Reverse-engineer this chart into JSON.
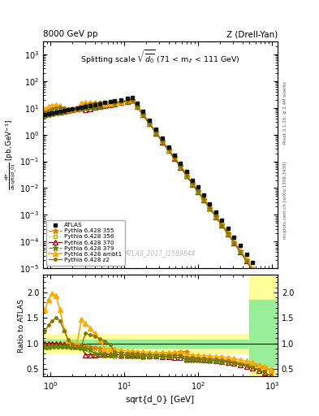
{
  "title_left": "8000 GeV pp",
  "title_right": "Z (Drell-Yan)",
  "panel_title": "Splitting scale $\\sqrt{\\overline{d_0}}$ (71 < m$_{ll}$ < 111 GeV)",
  "xlabel": "sqrt{d_0} [GeV]",
  "ylabel_main": "$\\frac{d\\sigma}{d\\mathrm{sqrt}(d\\_0)}$ [pb,GeV$^{-1}$]",
  "ylabel_ratio": "Ratio to ATLAS",
  "watermark": "ATLAS_2017_I1589844",
  "right_label_top": "Rivet 3.1.10; ≥ 2.4M events",
  "right_label_bot": "mcplots.cern.ch [arXiv:1306.3436]",
  "xlim": [
    0.8,
    1200
  ],
  "ylim_main": [
    1e-05,
    3000.0
  ],
  "ylim_ratio": [
    0.35,
    2.35
  ],
  "series": [
    {
      "label": "ATLAS",
      "color": "#111111",
      "marker": "s",
      "linestyle": "none",
      "lw": 1.0,
      "ms": 3.5,
      "mfc": "#111111"
    },
    {
      "label": "Pythia 6.428 355",
      "color": "#e07b00",
      "marker": "*",
      "linestyle": "--",
      "lw": 0.9,
      "ms": 5,
      "mfc": "#e07b00"
    },
    {
      "label": "Pythia 6.428 356",
      "color": "#aabb00",
      "marker": "s",
      "linestyle": ":",
      "lw": 0.9,
      "ms": 3.5,
      "mfc": "none"
    },
    {
      "label": "Pythia 6.428 370",
      "color": "#991111",
      "marker": "^",
      "linestyle": "-",
      "lw": 0.9,
      "ms": 4,
      "mfc": "none"
    },
    {
      "label": "Pythia 6.428 379",
      "color": "#668800",
      "marker": "*",
      "linestyle": "--",
      "lw": 0.9,
      "ms": 5,
      "mfc": "#668800"
    },
    {
      "label": "Pythia 6.428 ambt1",
      "color": "#ffaa00",
      "marker": "^",
      "linestyle": "-",
      "lw": 1.2,
      "ms": 4.5,
      "mfc": "#ffaa00"
    },
    {
      "label": "Pythia 6.428 z2",
      "color": "#887700",
      "marker": "o",
      "linestyle": "-",
      "lw": 1.0,
      "ms": 2.5,
      "mfc": "#887700"
    }
  ],
  "band_yellow": {
    "ylow": 0.82,
    "yhigh": 1.18,
    "color": "#ffff99",
    "alpha": 1.0
  },
  "band_green": {
    "ylow": 0.92,
    "yhigh": 1.08,
    "color": "#99ee99",
    "alpha": 1.0
  },
  "band_yellow_hi": {
    "xlow": 500,
    "xhigh": 1200,
    "ylow": 0.35,
    "yhigh": 2.35,
    "color": "#ffff99",
    "alpha": 1.0
  },
  "band_green_hi": {
    "xlow": 500,
    "xhigh": 1200,
    "ylow": 0.55,
    "yhigh": 1.85,
    "color": "#99ee99",
    "alpha": 1.0
  }
}
